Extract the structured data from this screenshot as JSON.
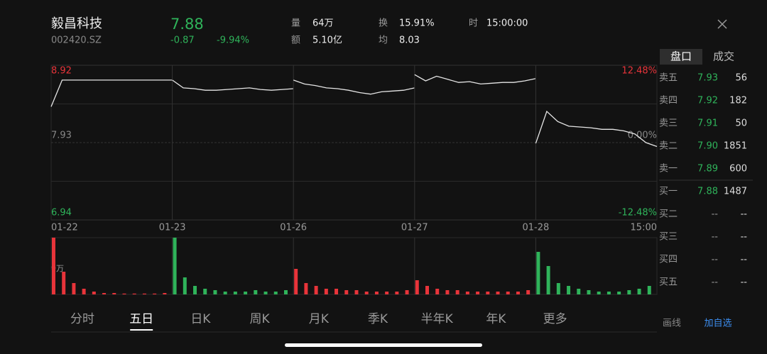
{
  "header": {
    "name": "毅昌科技",
    "code": "002420.SZ",
    "price": "7.88",
    "change": "-0.87",
    "change_pct": "-9.94%",
    "stats": [
      {
        "label": "量",
        "value": "64万"
      },
      {
        "label": "换",
        "value": "15.91%"
      },
      {
        "label": "时",
        "value": "15:00:00"
      },
      {
        "label": "额",
        "value": "5.10亿"
      },
      {
        "label": "均",
        "value": "8.03"
      }
    ]
  },
  "tabs": [
    "盘口",
    "成交"
  ],
  "order_book": [
    [
      "卖五",
      "7.93",
      "56"
    ],
    [
      "卖四",
      "7.92",
      "182"
    ],
    [
      "卖三",
      "7.91",
      "50"
    ],
    [
      "卖二",
      "7.90",
      "1851"
    ],
    [
      "卖一",
      "7.89",
      "600"
    ],
    [
      "买一",
      "7.88",
      "1487"
    ],
    [
      "买二",
      "--",
      "--"
    ],
    [
      "买三",
      "--",
      "--"
    ],
    [
      "买四",
      "--",
      "--"
    ],
    [
      "买五",
      "--",
      "--"
    ]
  ],
  "period_tabs": [
    "分时",
    "五日",
    "日K",
    "周K",
    "月K",
    "季K",
    "半年K",
    "年K",
    "更多"
  ],
  "actions": [
    "画线",
    "加自选"
  ],
  "chart_data": {
    "type": "line",
    "categories": [
      "01-22",
      "01-23",
      "01-26",
      "01-27",
      "01-28"
    ],
    "x_end_label": "15:00",
    "ylim": [
      6.94,
      8.92
    ],
    "yticks": [
      8.92,
      7.93,
      6.94
    ],
    "y2lim": [
      -12.48,
      12.48
    ],
    "y2ticks": [
      {
        "value": 12.48,
        "label": "12.48%"
      },
      {
        "value": 0,
        "label": "0.00%"
      },
      {
        "value": -12.48,
        "label": "-12.48%"
      }
    ],
    "color": "#e6e6e6",
    "days": [
      {
        "values": [
          8.39,
          8.73,
          8.73,
          8.73,
          8.73,
          8.73,
          8.73,
          8.73,
          8.73,
          8.73,
          8.73,
          8.73
        ]
      },
      {
        "values": [
          8.73,
          8.63,
          8.62,
          8.6,
          8.6,
          8.61,
          8.62,
          8.63,
          8.61,
          8.6,
          8.61,
          8.62
        ]
      },
      {
        "values": [
          8.73,
          8.68,
          8.66,
          8.63,
          8.62,
          8.6,
          8.57,
          8.55,
          8.58,
          8.59,
          8.6,
          8.63
        ]
      },
      {
        "values": [
          8.8,
          8.72,
          8.78,
          8.74,
          8.7,
          8.71,
          8.68,
          8.69,
          8.7,
          8.7,
          8.72,
          8.75
        ]
      },
      {
        "values": [
          7.92,
          8.33,
          8.2,
          8.14,
          8.13,
          8.12,
          8.1,
          8.1,
          8.08,
          8.04,
          7.93,
          7.88
        ]
      }
    ],
    "volume": {
      "type": "bar",
      "ylim": [
        0,
        20
      ],
      "yticks": [
        {
          "value": 9,
          "label": "9万"
        }
      ],
      "days": [
        {
          "color": "#e8343a",
          "values": [
            20,
            8,
            4,
            2,
            1,
            0.5,
            0.5,
            0.3,
            0.3,
            0.3,
            0.3,
            0.5
          ]
        },
        {
          "color": "#2fb35a",
          "values": [
            20,
            6,
            3,
            2,
            1.5,
            1,
            1,
            1,
            1.5,
            1,
            1,
            1.5
          ]
        },
        {
          "color": "#e8343a",
          "values": [
            9,
            4,
            3,
            2,
            2,
            1.5,
            1.5,
            1,
            1,
            1,
            1,
            1.5
          ]
        },
        {
          "color": "#e8343a",
          "values": [
            5,
            3,
            2,
            1.5,
            1.5,
            1,
            1,
            1,
            1,
            1,
            1,
            1.5
          ]
        },
        {
          "color": "#2fb35a",
          "values": [
            15,
            10,
            4,
            3,
            2,
            1.5,
            1,
            1,
            1,
            1.5,
            2,
            3
          ]
        }
      ]
    }
  }
}
